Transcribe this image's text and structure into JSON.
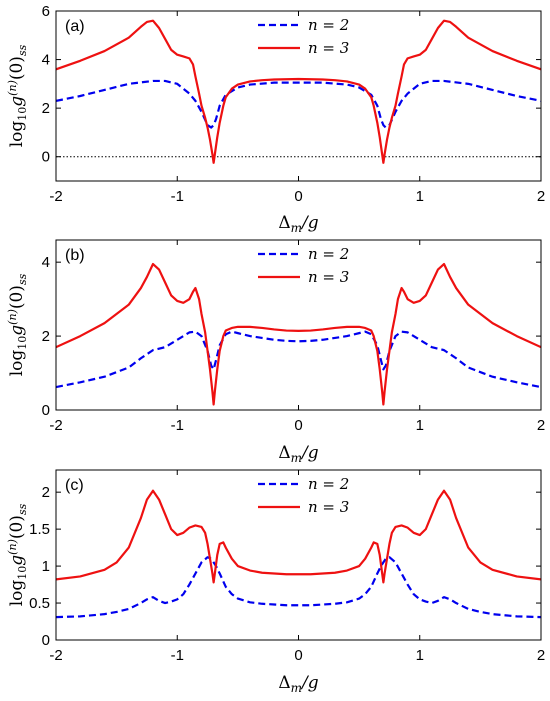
{
  "chart_data": [
    {
      "type": "line",
      "panel_label": "(a)",
      "xlabel": "Δm/g",
      "ylabel": "log10g(n)(0)ss",
      "xlim": [
        -2,
        2
      ],
      "ylim": [
        -1,
        6
      ],
      "xticks": [
        "-2",
        "-1",
        "0",
        "1",
        "2"
      ],
      "yticks": [
        "0",
        "2",
        "4",
        "6"
      ],
      "legend_position": "top-center",
      "reference_line_y": 0,
      "series": [
        {
          "name": "n = 2",
          "color": "#0000ee",
          "dash": "dashed",
          "x": [
            -2,
            -1.8,
            -1.6,
            -1.4,
            -1.2,
            -1.1,
            -1.0,
            -0.9,
            -0.85,
            -0.8,
            -0.75,
            -0.72,
            -0.7,
            -0.68,
            -0.65,
            -0.6,
            -0.5,
            -0.4,
            -0.2,
            0,
            0.2,
            0.4,
            0.5,
            0.6,
            0.65,
            0.68,
            0.7,
            0.72,
            0.75,
            0.8,
            0.85,
            0.9,
            1.0,
            1.1,
            1.2,
            1.4,
            1.6,
            1.8,
            2
          ],
          "y": [
            2.3,
            2.5,
            2.75,
            3.0,
            3.12,
            3.12,
            3.0,
            2.6,
            2.3,
            1.85,
            1.3,
            1.2,
            1.3,
            1.55,
            2.1,
            2.55,
            2.85,
            2.97,
            3.05,
            3.05,
            3.05,
            2.97,
            2.85,
            2.55,
            2.1,
            1.55,
            1.3,
            1.2,
            1.3,
            1.85,
            2.3,
            2.6,
            3.0,
            3.12,
            3.12,
            3.0,
            2.75,
            2.5,
            2.3
          ]
        },
        {
          "name": "n = 3",
          "color": "#ee1111",
          "dash": "solid",
          "x": [
            -2,
            -1.8,
            -1.6,
            -1.4,
            -1.3,
            -1.25,
            -1.2,
            -1.15,
            -1.1,
            -1.05,
            -1.0,
            -0.95,
            -0.9,
            -0.87,
            -0.85,
            -0.82,
            -0.8,
            -0.77,
            -0.75,
            -0.73,
            -0.71,
            -0.7,
            -0.69,
            -0.67,
            -0.65,
            -0.62,
            -0.6,
            -0.55,
            -0.5,
            -0.4,
            -0.3,
            -0.2,
            -0.1,
            0,
            0.1,
            0.2,
            0.3,
            0.4,
            0.5,
            0.55,
            0.6,
            0.62,
            0.65,
            0.67,
            0.69,
            0.7,
            0.71,
            0.73,
            0.75,
            0.77,
            0.8,
            0.82,
            0.85,
            0.87,
            0.9,
            0.95,
            1.0,
            1.05,
            1.1,
            1.15,
            1.2,
            1.25,
            1.3,
            1.4,
            1.6,
            1.8,
            2
          ],
          "y": [
            3.6,
            3.95,
            4.35,
            4.9,
            5.35,
            5.55,
            5.6,
            5.3,
            4.85,
            4.4,
            4.2,
            4.13,
            4.05,
            3.8,
            3.3,
            2.6,
            2.1,
            1.6,
            1.2,
            0.7,
            0.1,
            -0.25,
            0.1,
            0.8,
            1.4,
            2.1,
            2.45,
            2.8,
            2.97,
            3.1,
            3.15,
            3.18,
            3.19,
            3.2,
            3.19,
            3.18,
            3.15,
            3.1,
            2.97,
            2.8,
            2.45,
            2.1,
            1.4,
            0.8,
            0.1,
            -0.25,
            0.1,
            0.7,
            1.2,
            1.6,
            2.1,
            2.6,
            3.3,
            3.8,
            4.05,
            4.13,
            4.2,
            4.4,
            4.85,
            5.3,
            5.6,
            5.55,
            5.35,
            4.9,
            4.35,
            3.95,
            3.6
          ]
        }
      ]
    },
    {
      "type": "line",
      "panel_label": "(b)",
      "xlabel": "Δm/g",
      "ylabel": "log10g(n)(0)ss",
      "xlim": [
        -2,
        2
      ],
      "ylim": [
        0,
        4.6
      ],
      "xticks": [
        "-2",
        "-1",
        "0",
        "1",
        "2"
      ],
      "yticks": [
        "0",
        "2",
        "4"
      ],
      "legend_position": "top-center",
      "series": [
        {
          "name": "n = 2",
          "color": "#0000ee",
          "dash": "dashed",
          "x": [
            -2,
            -1.8,
            -1.6,
            -1.4,
            -1.3,
            -1.2,
            -1.1,
            -1.0,
            -0.9,
            -0.85,
            -0.8,
            -0.75,
            -0.72,
            -0.7,
            -0.68,
            -0.65,
            -0.6,
            -0.55,
            -0.5,
            -0.4,
            -0.3,
            -0.2,
            -0.1,
            0,
            0.1,
            0.2,
            0.3,
            0.4,
            0.5,
            0.55,
            0.6,
            0.65,
            0.68,
            0.7,
            0.72,
            0.75,
            0.8,
            0.85,
            0.9,
            1.0,
            1.1,
            1.2,
            1.3,
            1.4,
            1.6,
            1.8,
            2
          ],
          "y": [
            0.62,
            0.75,
            0.9,
            1.15,
            1.4,
            1.62,
            1.7,
            1.9,
            2.1,
            2.12,
            2.0,
            1.6,
            1.2,
            1.1,
            1.35,
            1.75,
            2.05,
            2.12,
            2.08,
            2.0,
            1.95,
            1.9,
            1.87,
            1.86,
            1.87,
            1.9,
            1.95,
            2.0,
            2.08,
            2.12,
            2.05,
            1.75,
            1.35,
            1.1,
            1.2,
            1.6,
            2.0,
            2.12,
            2.1,
            1.9,
            1.7,
            1.62,
            1.4,
            1.15,
            0.9,
            0.75,
            0.62
          ]
        },
        {
          "name": "n = 3",
          "color": "#ee1111",
          "dash": "solid",
          "x": [
            -2,
            -1.8,
            -1.6,
            -1.4,
            -1.3,
            -1.25,
            -1.2,
            -1.15,
            -1.1,
            -1.05,
            -1.0,
            -0.95,
            -0.9,
            -0.87,
            -0.85,
            -0.82,
            -0.8,
            -0.77,
            -0.75,
            -0.73,
            -0.71,
            -0.7,
            -0.69,
            -0.67,
            -0.65,
            -0.62,
            -0.6,
            -0.55,
            -0.5,
            -0.4,
            -0.3,
            -0.2,
            -0.1,
            0,
            0.1,
            0.2,
            0.3,
            0.4,
            0.5,
            0.55,
            0.6,
            0.62,
            0.65,
            0.67,
            0.69,
            0.7,
            0.71,
            0.73,
            0.75,
            0.77,
            0.8,
            0.82,
            0.85,
            0.87,
            0.9,
            0.95,
            1.0,
            1.05,
            1.1,
            1.15,
            1.2,
            1.25,
            1.3,
            1.4,
            1.6,
            1.8,
            2
          ],
          "y": [
            1.7,
            2.0,
            2.35,
            2.85,
            3.3,
            3.6,
            3.95,
            3.8,
            3.45,
            3.1,
            2.95,
            2.9,
            3.0,
            3.2,
            3.3,
            3.0,
            2.6,
            2.1,
            1.6,
            1.1,
            0.5,
            0.15,
            0.5,
            1.1,
            1.6,
            2.0,
            2.15,
            2.22,
            2.25,
            2.25,
            2.22,
            2.18,
            2.15,
            2.14,
            2.15,
            2.18,
            2.22,
            2.25,
            2.25,
            2.22,
            2.15,
            2.0,
            1.6,
            1.1,
            0.5,
            0.15,
            0.5,
            1.1,
            1.6,
            2.1,
            2.6,
            3.0,
            3.3,
            3.2,
            3.0,
            2.9,
            2.95,
            3.1,
            3.45,
            3.8,
            3.95,
            3.6,
            3.3,
            2.85,
            2.35,
            2.0,
            1.7
          ]
        }
      ]
    },
    {
      "type": "line",
      "panel_label": "(c)",
      "xlabel": "Δm/g",
      "ylabel": "log10g(n)(0)ss",
      "xlim": [
        -2,
        2
      ],
      "ylim": [
        0,
        2.3
      ],
      "xticks": [
        "-2",
        "-1",
        "0",
        "1",
        "2"
      ],
      "yticks": [
        "0",
        "0.5",
        "1",
        "1.5",
        "2"
      ],
      "legend_position": "top-center",
      "series": [
        {
          "name": "n = 2",
          "color": "#0000ee",
          "dash": "dashed",
          "x": [
            -2,
            -1.8,
            -1.6,
            -1.5,
            -1.4,
            -1.3,
            -1.25,
            -1.2,
            -1.15,
            -1.1,
            -1.05,
            -1.0,
            -0.95,
            -0.9,
            -0.85,
            -0.8,
            -0.75,
            -0.72,
            -0.7,
            -0.68,
            -0.65,
            -0.6,
            -0.55,
            -0.5,
            -0.4,
            -0.3,
            -0.2,
            -0.1,
            0,
            0.1,
            0.2,
            0.3,
            0.4,
            0.5,
            0.55,
            0.6,
            0.65,
            0.68,
            0.7,
            0.72,
            0.75,
            0.8,
            0.85,
            0.9,
            0.95,
            1.0,
            1.05,
            1.1,
            1.15,
            1.2,
            1.25,
            1.3,
            1.4,
            1.5,
            1.6,
            1.8,
            2
          ],
          "y": [
            0.31,
            0.32,
            0.35,
            0.38,
            0.42,
            0.5,
            0.55,
            0.58,
            0.53,
            0.5,
            0.52,
            0.55,
            0.62,
            0.75,
            0.9,
            1.05,
            1.12,
            1.1,
            1.05,
            1.0,
            0.9,
            0.72,
            0.62,
            0.56,
            0.51,
            0.49,
            0.48,
            0.47,
            0.47,
            0.47,
            0.48,
            0.49,
            0.51,
            0.56,
            0.62,
            0.72,
            0.9,
            1.0,
            1.05,
            1.1,
            1.12,
            1.05,
            0.9,
            0.75,
            0.62,
            0.55,
            0.52,
            0.5,
            0.53,
            0.58,
            0.55,
            0.5,
            0.42,
            0.38,
            0.35,
            0.32,
            0.31
          ]
        },
        {
          "name": "n = 3",
          "color": "#ee1111",
          "dash": "solid",
          "x": [
            -2,
            -1.8,
            -1.6,
            -1.5,
            -1.4,
            -1.3,
            -1.25,
            -1.2,
            -1.15,
            -1.1,
            -1.05,
            -1.0,
            -0.95,
            -0.9,
            -0.85,
            -0.8,
            -0.77,
            -0.75,
            -0.73,
            -0.71,
            -0.7,
            -0.69,
            -0.67,
            -0.65,
            -0.62,
            -0.6,
            -0.55,
            -0.5,
            -0.4,
            -0.3,
            -0.2,
            -0.1,
            0,
            0.1,
            0.2,
            0.3,
            0.4,
            0.5,
            0.55,
            0.6,
            0.62,
            0.65,
            0.67,
            0.69,
            0.7,
            0.71,
            0.73,
            0.75,
            0.77,
            0.8,
            0.85,
            0.9,
            0.95,
            1.0,
            1.05,
            1.1,
            1.15,
            1.2,
            1.25,
            1.3,
            1.4,
            1.5,
            1.6,
            1.8,
            2
          ],
          "y": [
            0.82,
            0.86,
            0.95,
            1.05,
            1.25,
            1.65,
            1.9,
            2.02,
            1.9,
            1.7,
            1.5,
            1.42,
            1.45,
            1.52,
            1.55,
            1.53,
            1.45,
            1.3,
            1.1,
            0.9,
            0.78,
            0.9,
            1.15,
            1.3,
            1.32,
            1.25,
            1.1,
            1.0,
            0.94,
            0.91,
            0.9,
            0.89,
            0.89,
            0.89,
            0.9,
            0.91,
            0.94,
            1.0,
            1.1,
            1.25,
            1.32,
            1.3,
            1.15,
            0.9,
            0.78,
            0.9,
            1.1,
            1.3,
            1.45,
            1.53,
            1.55,
            1.52,
            1.45,
            1.42,
            1.5,
            1.7,
            1.9,
            2.02,
            1.9,
            1.65,
            1.25,
            1.05,
            0.95,
            0.86,
            0.82
          ]
        }
      ]
    }
  ]
}
